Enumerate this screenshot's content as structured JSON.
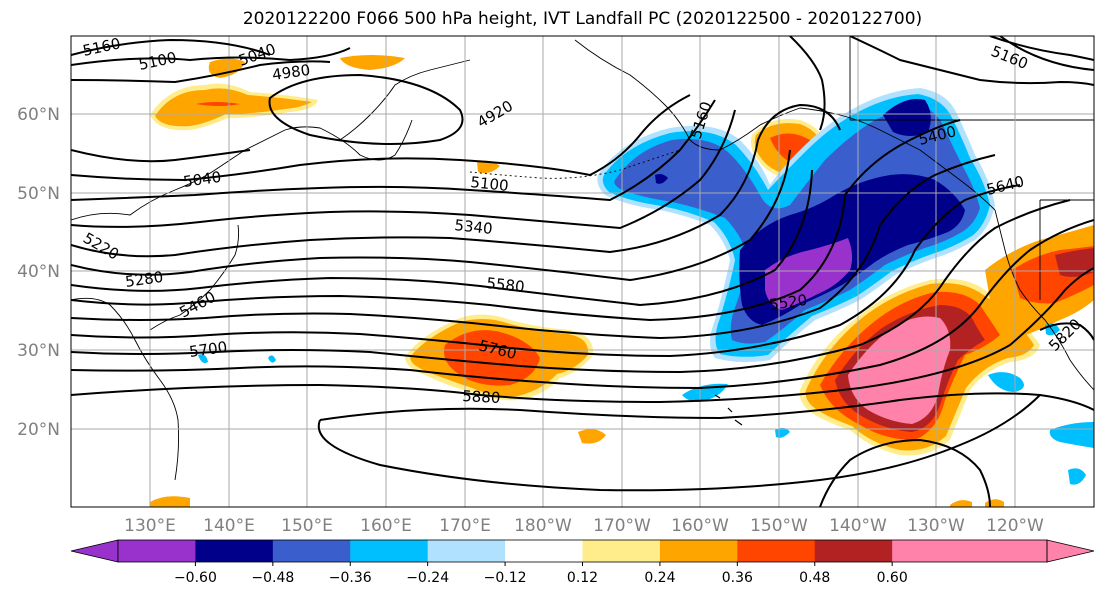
{
  "title": "2020122200 F066 500 hPa height, IVT Landfall PC (2020122500 - 2020122700)",
  "lat_labels": [
    "60°N",
    "50°N",
    "40°N",
    "30°N",
    "20°N"
  ],
  "lon_labels": [
    "130°E",
    "140°E",
    "150°E",
    "160°E",
    "170°E",
    "180°W",
    "170°W",
    "160°W",
    "150°W",
    "140°W",
    "130°W",
    "120°W"
  ],
  "contour_labels": [
    "5160",
    "5100",
    "5040",
    "4980",
    "4920",
    "5040",
    "5100",
    "5220",
    "5280",
    "5340",
    "5460",
    "5580",
    "5700",
    "5760",
    "5880",
    "5160",
    "5160",
    "5400",
    "5640",
    "5520",
    "5820"
  ],
  "colorbar": {
    "ticks": [
      "−0.60",
      "−0.48",
      "−0.36",
      "−0.24",
      "−0.12",
      "0.12",
      "0.24",
      "0.36",
      "0.48",
      "0.60"
    ],
    "colors": [
      "#9932CC",
      "#00008B",
      "#3A5FCD",
      "#00BFFF",
      "#B0E2FF",
      "#FFFFFF",
      "#FFEC8B",
      "#FFA500",
      "#FF4500",
      "#B22222",
      "#FF82AB",
      "#FF82AB"
    ]
  },
  "colors": {
    "purple": "#9932CC",
    "navy": "#00008B",
    "royal": "#3A5FCD",
    "sky": "#00BFFF",
    "pale_blue": "#B0E2FF",
    "pale_yellow": "#FFEC8B",
    "orange": "#FFA500",
    "red_orange": "#FF4500",
    "firebrick": "#B22222",
    "pink": "#FF82AB",
    "grid": "#aaaaaa",
    "tick_label": "#808080"
  }
}
